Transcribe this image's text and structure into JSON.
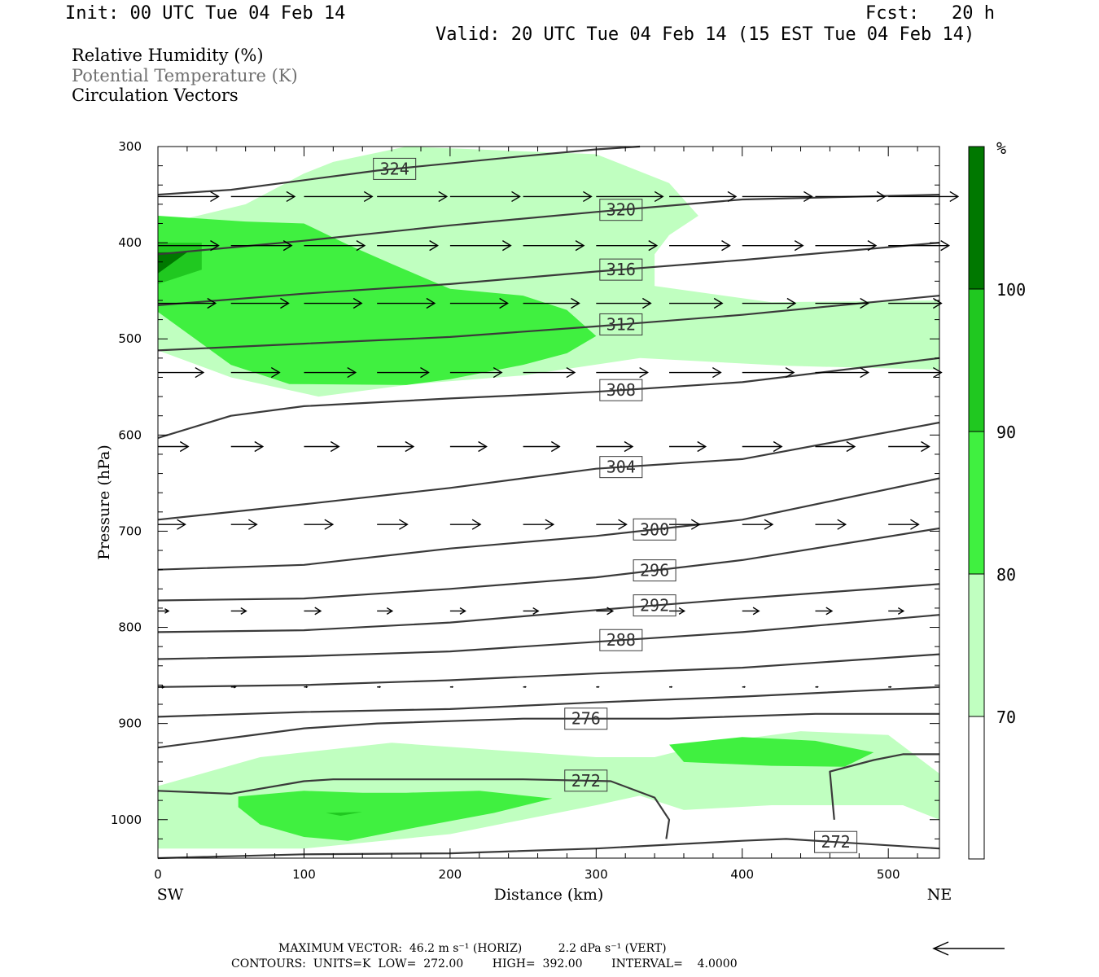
{
  "header": {
    "init": "Init: 00 UTC Tue 04 Feb 14",
    "fcst": "Fcst:   20 h",
    "valid": "Valid: 20 UTC Tue 04 Feb 14 (15 EST Tue 04 Feb 14)"
  },
  "legend": {
    "line1": "Relative Humidity (%)",
    "line2": "Potential Temperature (K)",
    "line3": "Circulation Vectors"
  },
  "footer": {
    "max_vector": "MAXIMUM VECTOR:  46.2 m s⁻¹ (HORIZ)          2.2 dPa s⁻¹ (VERT)",
    "contours": "CONTOURS:  UNITS=K  LOW=  272.00        HIGH=  392.00        INTERVAL=    4.0000"
  },
  "colorbar": {
    "unit": "%",
    "levels": [
      "100",
      "90",
      "80",
      "70"
    ],
    "colors": [
      "#007800",
      "#20c820",
      "#40f040",
      "#c0ffc0",
      "#ffffff"
    ]
  },
  "chart_data": {
    "type": "cross-section",
    "xlabel": "Distance (km)",
    "ylabel": "Pressure (hPa)",
    "xlim": [
      0,
      535
    ],
    "ylim": [
      1040,
      300
    ],
    "x_ticks": [
      "0",
      "100",
      "200",
      "300",
      "400",
      "500"
    ],
    "y_ticks": [
      "300",
      "400",
      "500",
      "600",
      "700",
      "800",
      "900",
      "1000"
    ],
    "x_endpoints": {
      "left": "SW",
      "right": "NE"
    },
    "fills": {
      "rh_70_80": "#c0ffc0",
      "rh_80_90": "#40f040",
      "rh_90_100": "#20c820",
      "rh_100": "#007800"
    },
    "rh_regions": [
      {
        "level": "70",
        "points": [
          [
            0,
            382
          ],
          [
            60,
            360
          ],
          [
            100,
            328
          ],
          [
            120,
            316
          ],
          [
            170,
            300
          ],
          [
            300,
            308
          ],
          [
            350,
            338
          ],
          [
            370,
            372
          ],
          [
            350,
            392
          ],
          [
            340,
            412
          ],
          [
            340,
            445
          ],
          [
            420,
            462
          ],
          [
            535,
            460
          ],
          [
            535,
            532
          ],
          [
            430,
            528
          ],
          [
            330,
            520
          ],
          [
            250,
            538
          ],
          [
            175,
            547
          ],
          [
            110,
            560
          ],
          [
            50,
            540
          ],
          [
            0,
            512
          ]
        ]
      },
      {
        "level": "70",
        "points": [
          [
            0,
            965
          ],
          [
            70,
            935
          ],
          [
            160,
            920
          ],
          [
            300,
            935
          ],
          [
            340,
            935
          ],
          [
            380,
            920
          ],
          [
            440,
            908
          ],
          [
            500,
            912
          ],
          [
            535,
            952
          ],
          [
            535,
            1000
          ],
          [
            510,
            985
          ],
          [
            420,
            985
          ],
          [
            360,
            990
          ],
          [
            330,
            975
          ],
          [
            300,
            985
          ],
          [
            200,
            1015
          ],
          [
            100,
            1030
          ],
          [
            0,
            1030
          ]
        ]
      },
      {
        "level": "80",
        "points": [
          [
            0,
            372
          ],
          [
            60,
            378
          ],
          [
            100,
            380
          ],
          [
            130,
            402
          ],
          [
            160,
            422
          ],
          [
            200,
            448
          ],
          [
            250,
            455
          ],
          [
            280,
            470
          ],
          [
            300,
            497
          ],
          [
            280,
            515
          ],
          [
            250,
            527
          ],
          [
            200,
            542
          ],
          [
            170,
            548
          ],
          [
            90,
            547
          ],
          [
            50,
            527
          ],
          [
            0,
            472
          ]
        ]
      },
      {
        "level": "80",
        "points": [
          [
            350,
            922
          ],
          [
            400,
            914
          ],
          [
            450,
            918
          ],
          [
            490,
            930
          ],
          [
            470,
            945
          ],
          [
            420,
            944
          ],
          [
            360,
            940
          ]
        ]
      },
      {
        "level": "80",
        "points": [
          [
            55,
            976
          ],
          [
            100,
            970
          ],
          [
            140,
            972
          ],
          [
            170,
            972
          ],
          [
            220,
            970
          ],
          [
            270,
            978
          ],
          [
            230,
            993
          ],
          [
            170,
            1010
          ],
          [
            130,
            1022
          ],
          [
            100,
            1018
          ],
          [
            70,
            1005
          ],
          [
            55,
            987
          ]
        ]
      },
      {
        "level": "90",
        "points": [
          [
            0,
            400
          ],
          [
            30,
            400
          ],
          [
            30,
            428
          ],
          [
            0,
            443
          ]
        ]
      },
      {
        "level": "100",
        "points": [
          [
            0,
            410
          ],
          [
            20,
            410
          ],
          [
            0,
            432
          ]
        ]
      },
      {
        "level": "90",
        "points": [
          [
            115,
            993
          ],
          [
            140,
            992
          ],
          [
            125,
            996
          ]
        ]
      }
    ],
    "isentropes": [
      {
        "theta": "324",
        "label_x": 162,
        "points": [
          [
            0,
            350
          ],
          [
            50,
            345
          ],
          [
            150,
            325
          ],
          [
            250,
            310
          ],
          [
            300,
            303
          ],
          [
            330,
            300
          ]
        ]
      },
      {
        "theta": "320",
        "label_x": 317,
        "points": [
          [
            0,
            412
          ],
          [
            100,
            398
          ],
          [
            200,
            382
          ],
          [
            300,
            368
          ],
          [
            400,
            355
          ],
          [
            535,
            350
          ]
        ]
      },
      {
        "theta": "316",
        "label_x": 317,
        "points": [
          [
            0,
            465
          ],
          [
            100,
            453
          ],
          [
            200,
            443
          ],
          [
            300,
            430
          ],
          [
            400,
            418
          ],
          [
            535,
            400
          ]
        ]
      },
      {
        "theta": "312",
        "label_x": 317,
        "points": [
          [
            0,
            512
          ],
          [
            100,
            505
          ],
          [
            200,
            498
          ],
          [
            300,
            487
          ],
          [
            400,
            475
          ],
          [
            535,
            455
          ]
        ]
      },
      {
        "theta": "308",
        "label_x": 317,
        "points": [
          [
            0,
            603
          ],
          [
            50,
            580
          ],
          [
            100,
            570
          ],
          [
            200,
            562
          ],
          [
            300,
            555
          ],
          [
            400,
            545
          ],
          [
            535,
            520
          ]
        ]
      },
      {
        "theta": "304",
        "label_x": 317,
        "points": [
          [
            0,
            688
          ],
          [
            100,
            672
          ],
          [
            200,
            655
          ],
          [
            300,
            635
          ],
          [
            400,
            625
          ],
          [
            535,
            587
          ]
        ]
      },
      {
        "theta": "300",
        "label_x": 340,
        "points": [
          [
            0,
            740
          ],
          [
            100,
            735
          ],
          [
            200,
            718
          ],
          [
            300,
            705
          ],
          [
            400,
            688
          ],
          [
            535,
            645
          ]
        ]
      },
      {
        "theta": "296",
        "label_x": 340,
        "points": [
          [
            0,
            772
          ],
          [
            100,
            770
          ],
          [
            200,
            760
          ],
          [
            300,
            748
          ],
          [
            400,
            730
          ],
          [
            535,
            697
          ]
        ]
      },
      {
        "theta": "292",
        "label_x": 340,
        "points": [
          [
            0,
            805
          ],
          [
            100,
            803
          ],
          [
            200,
            795
          ],
          [
            300,
            782
          ],
          [
            400,
            770
          ],
          [
            535,
            755
          ]
        ]
      },
      {
        "theta": "288",
        "label_x": 317,
        "points": [
          [
            0,
            833
          ],
          [
            100,
            830
          ],
          [
            200,
            825
          ],
          [
            300,
            815
          ],
          [
            400,
            805
          ],
          [
            535,
            787
          ]
        ]
      },
      {
        "theta": "284",
        "label_x": -1,
        "points": [
          [
            0,
            862
          ],
          [
            100,
            860
          ],
          [
            200,
            855
          ],
          [
            300,
            848
          ],
          [
            400,
            842
          ],
          [
            535,
            828
          ]
        ]
      },
      {
        "theta": "280",
        "label_x": -1,
        "points": [
          [
            0,
            893
          ],
          [
            100,
            888
          ],
          [
            200,
            885
          ],
          [
            300,
            878
          ],
          [
            400,
            872
          ],
          [
            535,
            862
          ]
        ]
      },
      {
        "theta": "276",
        "label_x": 293,
        "points": [
          [
            0,
            925
          ],
          [
            50,
            915
          ],
          [
            100,
            905
          ],
          [
            150,
            900
          ],
          [
            250,
            895
          ],
          [
            350,
            895
          ],
          [
            450,
            890
          ],
          [
            535,
            890
          ]
        ]
      },
      {
        "theta": "272",
        "label_x": 293,
        "points": [
          [
            0,
            970
          ],
          [
            50,
            973
          ],
          [
            100,
            960
          ],
          [
            120,
            958
          ],
          [
            200,
            958
          ],
          [
            250,
            958
          ],
          [
            310,
            960
          ],
          [
            340,
            977
          ],
          [
            350,
            1000
          ],
          [
            348,
            1020
          ]
        ]
      },
      {
        "theta": "272",
        "label_x": -1,
        "points": [
          [
            463,
            1000
          ],
          [
            460,
            950
          ],
          [
            490,
            938
          ],
          [
            510,
            932
          ],
          [
            535,
            932
          ]
        ]
      },
      {
        "theta": "272",
        "label_x": 464,
        "points": [
          [
            0,
            1040
          ],
          [
            100,
            1036
          ],
          [
            200,
            1035
          ],
          [
            300,
            1030
          ],
          [
            400,
            1022
          ],
          [
            430,
            1020
          ],
          [
            535,
            1030
          ]
        ]
      }
    ],
    "vectors": [
      {
        "p": 352,
        "xs": [
          0,
          50,
          100,
          150,
          200,
          250,
          300,
          350,
          400,
          450,
          500
        ],
        "u": [
          40,
          42,
          45,
          46,
          46,
          45,
          44,
          44,
          46,
          46,
          46
        ],
        "w": [
          0,
          0,
          0,
          0,
          0,
          0,
          0,
          0,
          0,
          0,
          0
        ]
      },
      {
        "p": 403,
        "xs": [
          0,
          50,
          100,
          150,
          200,
          250,
          300,
          350,
          400,
          450,
          500
        ],
        "u": [
          40,
          40,
          40,
          40,
          40,
          40,
          40,
          40,
          40,
          40,
          40
        ],
        "w": [
          0,
          0,
          0,
          0,
          0,
          0,
          0,
          0,
          0,
          0,
          0
        ]
      },
      {
        "p": 463,
        "xs": [
          0,
          50,
          100,
          150,
          200,
          250,
          300,
          350,
          400,
          450,
          500
        ],
        "u": [
          38,
          38,
          38,
          38,
          38,
          37,
          36,
          35,
          35,
          35,
          35
        ],
        "w": [
          0,
          0,
          0,
          0,
          0,
          0,
          0,
          0,
          0,
          0,
          0
        ]
      },
      {
        "p": 535,
        "xs": [
          0,
          50,
          100,
          150,
          200,
          250,
          300,
          350,
          400,
          450,
          500
        ],
        "u": [
          30,
          32,
          34,
          34,
          34,
          34,
          34,
          34,
          34,
          35,
          35
        ],
        "w": [
          0,
          0,
          0,
          0,
          0,
          0,
          0,
          0,
          0,
          0,
          0
        ]
      },
      {
        "p": 612,
        "xs": [
          0,
          50,
          100,
          150,
          200,
          250,
          300,
          350,
          400,
          450,
          500
        ],
        "u": [
          20,
          21,
          23,
          24,
          24,
          24,
          24,
          24,
          26,
          26,
          27
        ],
        "w": [
          0,
          0,
          0,
          0,
          0,
          0,
          0,
          0,
          0,
          0,
          0
        ]
      },
      {
        "p": 693,
        "xs": [
          0,
          50,
          100,
          150,
          200,
          250,
          300,
          350,
          400,
          450,
          500
        ],
        "u": [
          18,
          17,
          19,
          20,
          20,
          20,
          20,
          20,
          20,
          20,
          20
        ],
        "w": [
          0,
          0,
          0,
          0,
          0,
          0,
          0,
          0,
          0,
          0,
          0
        ]
      },
      {
        "p": 783,
        "xs": [
          0,
          50,
          100,
          150,
          200,
          250,
          300,
          350,
          400,
          450,
          500
        ],
        "u": [
          7,
          10,
          11,
          10,
          10,
          10,
          11,
          10,
          11,
          11,
          10
        ],
        "w": [
          0,
          0,
          0,
          0,
          0,
          0,
          0,
          0,
          0,
          0,
          0
        ]
      },
      {
        "p": 862,
        "xs": [
          0,
          50,
          100,
          150,
          200,
          250,
          300,
          350,
          400,
          450,
          500
        ],
        "u": [
          4,
          3,
          2,
          2,
          1,
          1,
          0,
          0,
          1,
          0,
          1
        ],
        "w": [
          0,
          0,
          0,
          0,
          0,
          0,
          0,
          0,
          0,
          0,
          0
        ]
      }
    ]
  }
}
